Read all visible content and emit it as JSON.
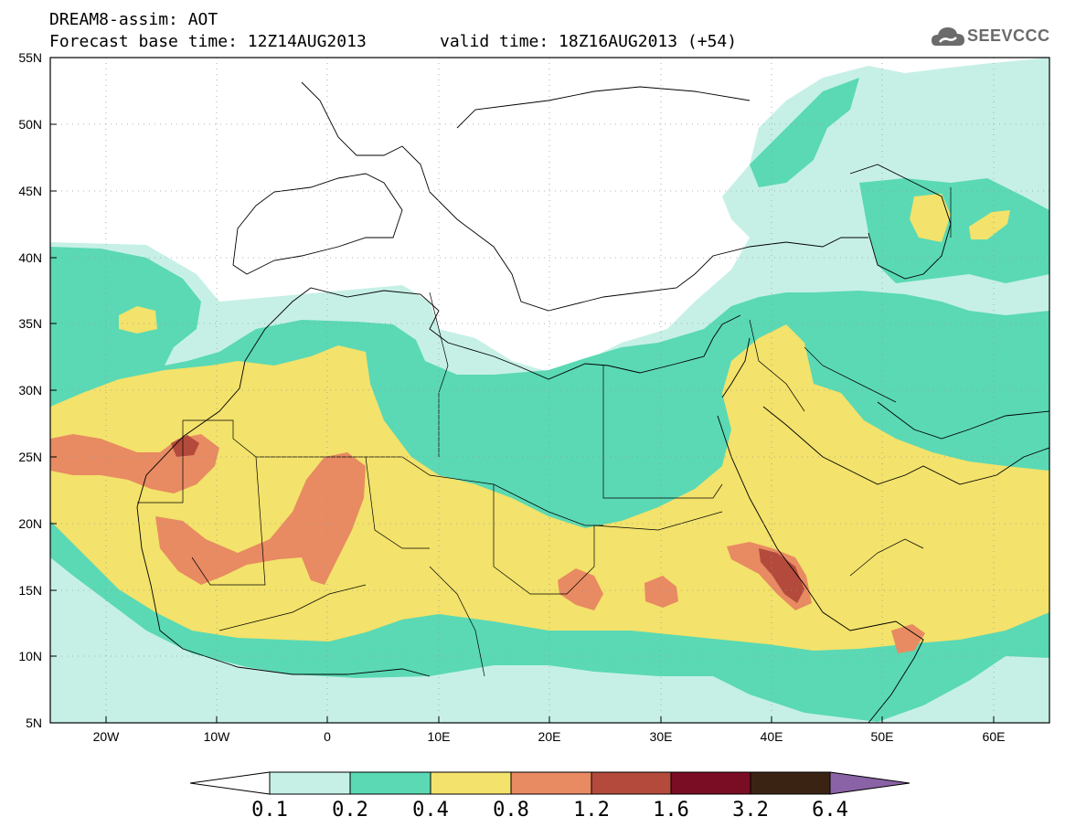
{
  "header": {
    "title_line1": "DREAM8-assim: AOT",
    "title_line2": "Forecast base time: 12Z14AUG2013",
    "valid_time": "valid time: 18Z16AUG2013 (+54)"
  },
  "logo": {
    "text": "SEEVCCC",
    "icon": "cloud-icon"
  },
  "map": {
    "lon_range": [
      -25,
      65
    ],
    "lat_range": [
      5,
      55
    ],
    "lat_labels": [
      "55N",
      "50N",
      "45N",
      "40N",
      "35N",
      "30N",
      "25N",
      "20N",
      "15N",
      "10N",
      "5N"
    ],
    "lon_labels": [
      "20W",
      "10W",
      "0",
      "10E",
      "20E",
      "30E",
      "40E",
      "50E",
      "60E"
    ],
    "grid": "dotted"
  },
  "colorbar": {
    "levels": [
      "0.1",
      "0.2",
      "0.4",
      "0.8",
      "1.2",
      "1.6",
      "3.2",
      "6.4"
    ],
    "colors": {
      "below": "#ffffff",
      "c1": "#c6f0e6",
      "c2": "#5ad9b4",
      "c3": "#f3e26b",
      "c4": "#e88a62",
      "c5": "#b34a3c",
      "c6": "#7a0c24",
      "c7": "#3b2314",
      "above": "#8a63a6"
    }
  }
}
